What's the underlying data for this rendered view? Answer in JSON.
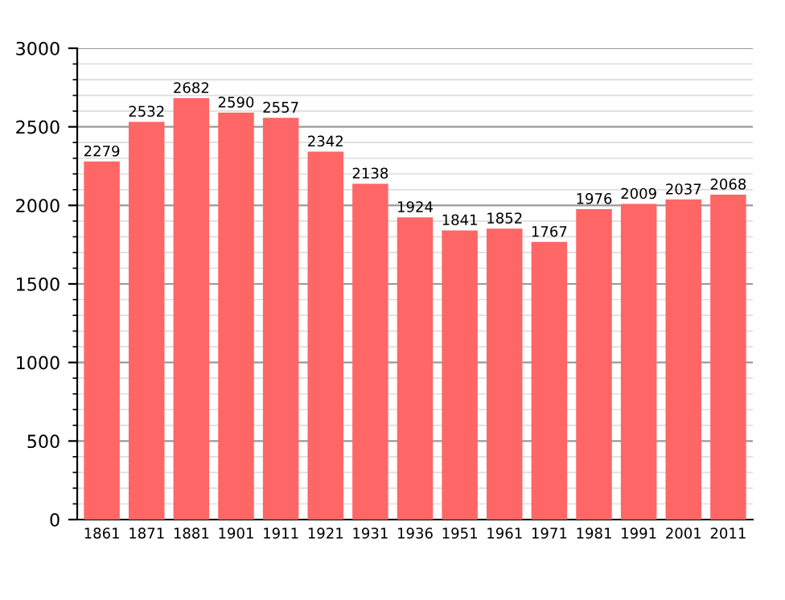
{
  "chart_data": {
    "type": "bar",
    "categories": [
      "1861",
      "1871",
      "1881",
      "1901",
      "1911",
      "1921",
      "1931",
      "1936",
      "1951",
      "1961",
      "1971",
      "1981",
      "1991",
      "2001",
      "2011"
    ],
    "values": [
      2279,
      2532,
      2682,
      2590,
      2557,
      2342,
      2138,
      1924,
      1841,
      1852,
      1767,
      1976,
      2009,
      2037,
      2068
    ],
    "color": "#ff6666",
    "ylim": [
      0,
      3000
    ],
    "yticks": [
      0,
      500,
      1000,
      1500,
      2000,
      2500,
      3000
    ],
    "grid": "y",
    "data_labels": true
  }
}
